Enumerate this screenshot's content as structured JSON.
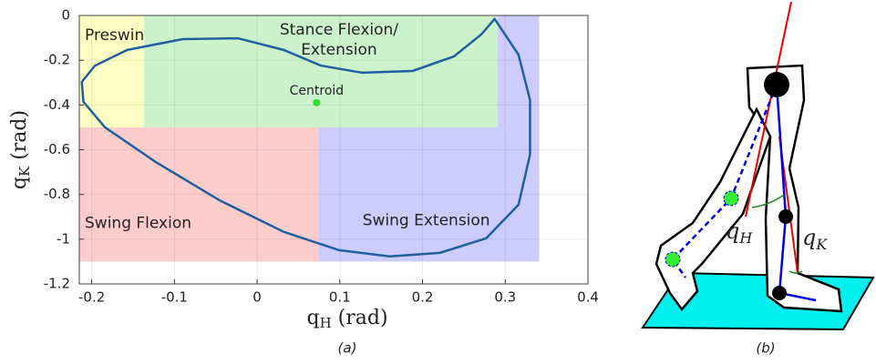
{
  "chart_data": {
    "type": "line",
    "x_label": {
      "main": "q",
      "sub": "H",
      "unit": " (rad)"
    },
    "y_label": {
      "main": "q",
      "sub": "K",
      "unit": " (rad)"
    },
    "caption": "(a)",
    "xlim": [
      -0.215,
      0.4
    ],
    "ylim": [
      -1.2,
      0
    ],
    "xticks": [
      -0.2,
      -0.1,
      0,
      0.1,
      0.2,
      0.3,
      0.4
    ],
    "yticks": [
      -1.2,
      -1,
      -0.8,
      -0.6,
      -0.4,
      -0.2,
      0
    ],
    "grid": true,
    "regions": [
      {
        "label": [
          "Preswing"
        ],
        "x": [
          -0.215,
          -0.137
        ],
        "y": [
          -0.5,
          0
        ],
        "color": "#ffffc4"
      },
      {
        "label": [
          "Stance Flexion/",
          "Extension"
        ],
        "x": [
          -0.137,
          0.291
        ],
        "y": [
          -0.5,
          0
        ],
        "color": "#ccf2cc"
      },
      {
        "label": [
          "Swing Flexion"
        ],
        "x": [
          -0.215,
          0.074
        ],
        "y": [
          -1.1,
          -0.5
        ],
        "color": "#ffcccc"
      },
      {
        "label": [
          "Swing Extension"
        ],
        "x": [
          0.074,
          0.291
        ],
        "y": [
          -1.1,
          -0.5
        ],
        "color": "#ccccff"
      },
      {
        "label": [],
        "x": [
          0.291,
          0.341
        ],
        "y": [
          -1.1,
          0
        ],
        "color": "#ccccff"
      }
    ],
    "series": [
      {
        "color": "#1f5fa0",
        "x": [
          0.288,
          0.316,
          0.33,
          0.33,
          0.316,
          0.277,
          0.221,
          0.16,
          0.099,
          0.032,
          -0.046,
          -0.123,
          -0.184,
          -0.21,
          -0.212,
          -0.196,
          -0.157,
          -0.09,
          -0.023,
          0.032,
          0.077,
          0.127,
          0.188,
          0.238,
          0.271,
          0.288
        ],
        "values": [
          -0.02,
          -0.175,
          -0.378,
          -0.622,
          -0.846,
          -0.996,
          -1.061,
          -1.077,
          -1.049,
          -0.967,
          -0.825,
          -0.654,
          -0.5,
          -0.386,
          -0.297,
          -0.224,
          -0.154,
          -0.106,
          -0.102,
          -0.154,
          -0.224,
          -0.256,
          -0.248,
          -0.183,
          -0.085,
          -0.012
        ]
      }
    ],
    "centroid": {
      "label": "Centroid",
      "x": 0.072,
      "y": -0.39,
      "color": "#33dd33"
    }
  },
  "diagram": {
    "q_H": {
      "main": "q",
      "sub": "H"
    },
    "q_K": {
      "main": "q",
      "sub": "K"
    },
    "caption": "(b)"
  }
}
